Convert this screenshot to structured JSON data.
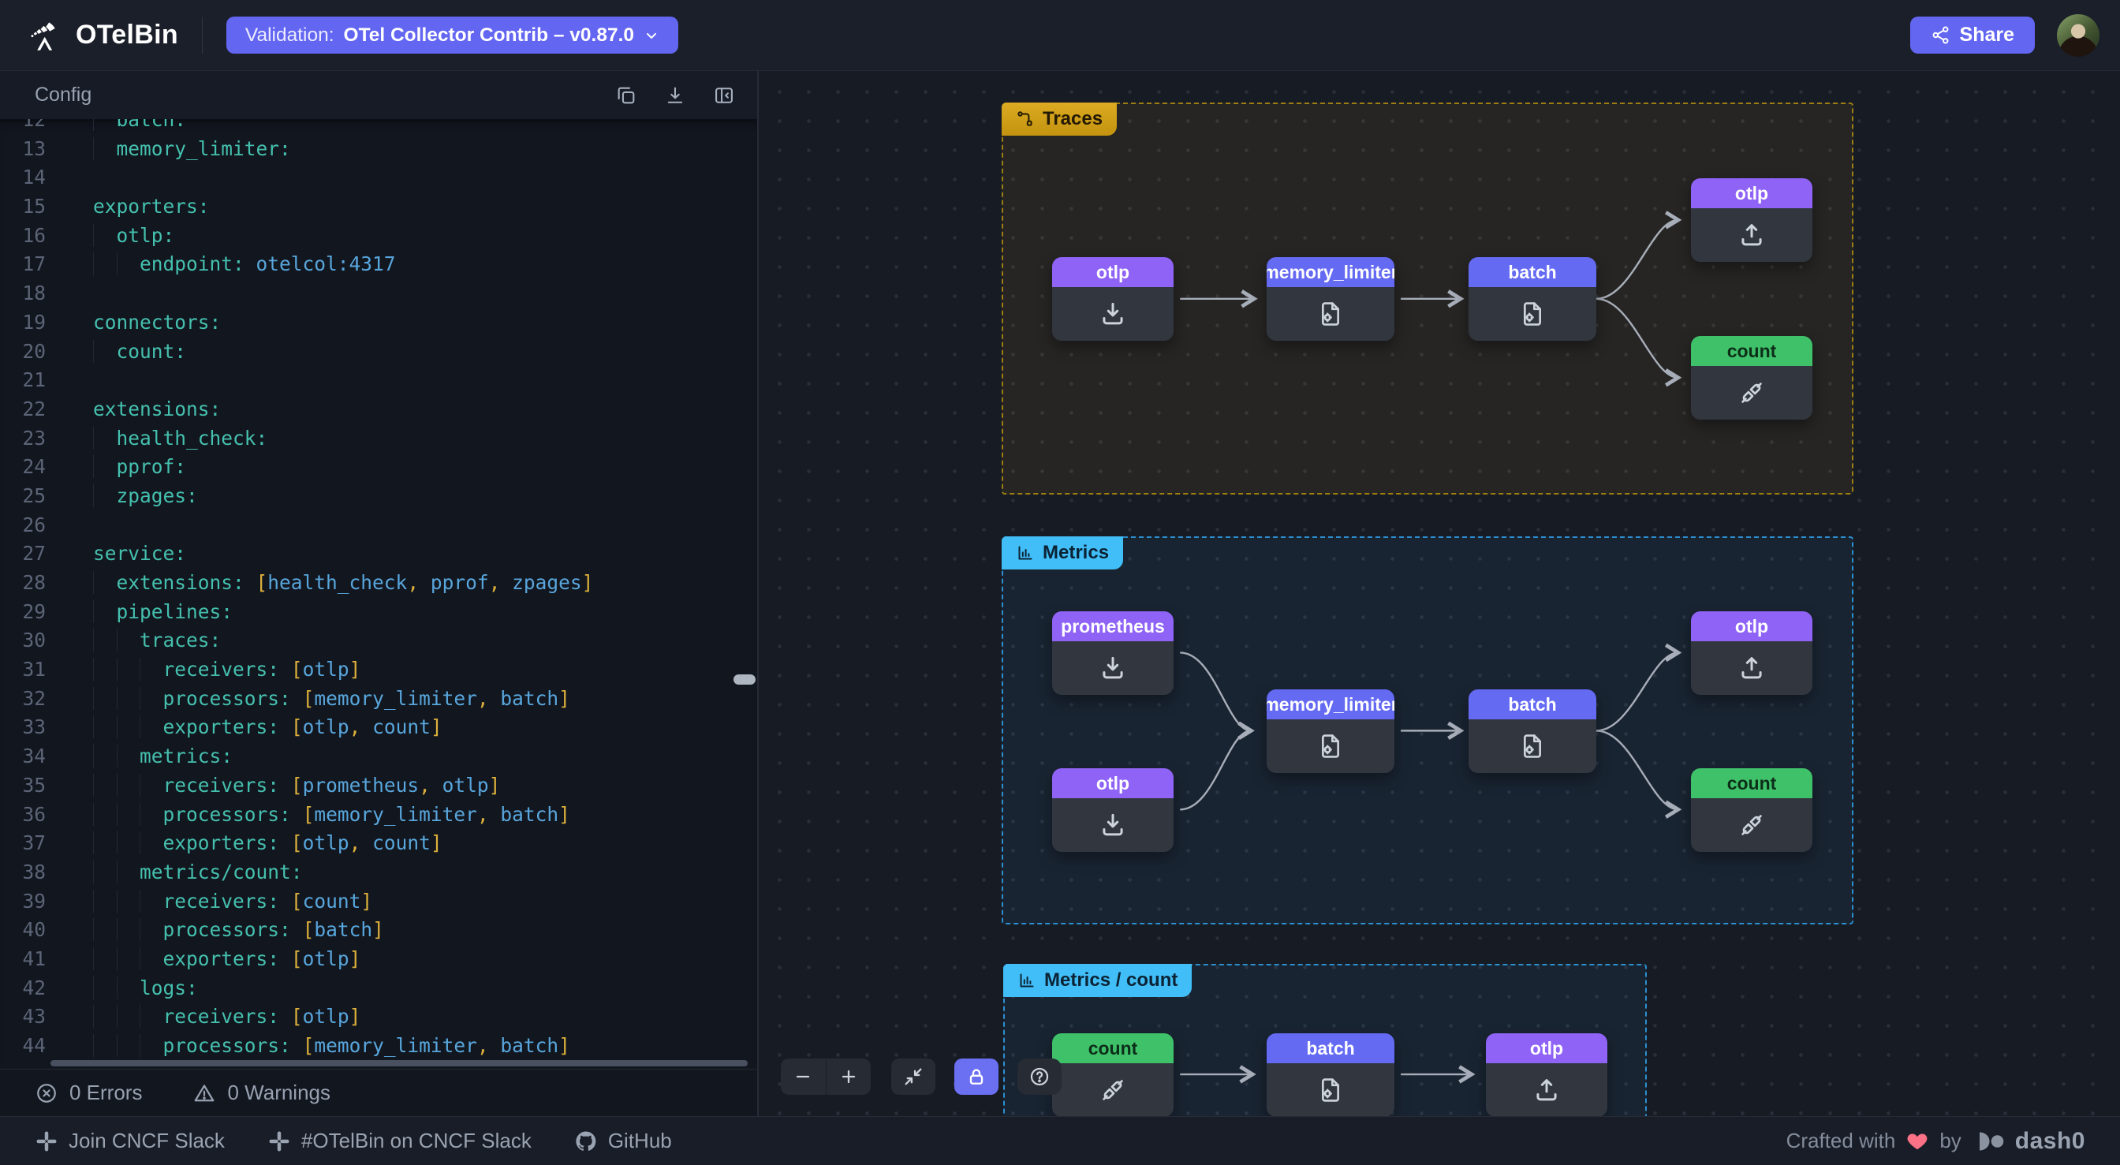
{
  "colors": {
    "accent_indigo": "#6366f1",
    "receiver_purple": "#8e63f6",
    "processor_indigo": "#646af2",
    "connector_green": "#3fc169",
    "traces_amber": "#d9a824",
    "metrics_cyan": "#41bdf7",
    "edge_gray": "#a8aeb9",
    "code_key_teal": "#45c0ae",
    "code_value_blue": "#58a6dc",
    "code_punct_yellow": "#ddb13b",
    "heart_red": "#fb7185"
  },
  "header": {
    "app_name": "OTelBin",
    "validation_label": "Validation:",
    "validation_value": "OTel Collector Contrib – v0.87.0",
    "share_label": "Share",
    "icons": [
      "otelbin-logo",
      "chevron-down-icon",
      "share-icon",
      "user-avatar"
    ]
  },
  "config_panel": {
    "title": "Config",
    "toolbar_icons": [
      "copy-icon",
      "download-icon",
      "collapse-panel-icon"
    ],
    "status": {
      "errors": "0 Errors",
      "warnings": "0 Warnings"
    },
    "status_icons": [
      "circle-x-icon",
      "warning-triangle-icon"
    ],
    "lines": [
      {
        "n": "12",
        "t": [
          [
            "i",
            "  "
          ],
          [
            "k",
            "batch:"
          ]
        ]
      },
      {
        "n": "13",
        "t": [
          [
            "i",
            "  "
          ],
          [
            "k",
            "memory_limiter:"
          ]
        ]
      },
      {
        "n": "14",
        "t": []
      },
      {
        "n": "15",
        "t": [
          [
            "k",
            "exporters:"
          ]
        ]
      },
      {
        "n": "16",
        "t": [
          [
            "i",
            "  "
          ],
          [
            "k",
            "otlp:"
          ]
        ]
      },
      {
        "n": "17",
        "t": [
          [
            "i",
            "    "
          ],
          [
            "k",
            "endpoint:"
          ],
          [
            "v",
            " otelcol:4317"
          ]
        ]
      },
      {
        "n": "18",
        "t": []
      },
      {
        "n": "19",
        "t": [
          [
            "k",
            "connectors:"
          ]
        ]
      },
      {
        "n": "20",
        "t": [
          [
            "i",
            "  "
          ],
          [
            "k",
            "count:"
          ]
        ]
      },
      {
        "n": "21",
        "t": []
      },
      {
        "n": "22",
        "t": [
          [
            "k",
            "extensions:"
          ]
        ]
      },
      {
        "n": "23",
        "t": [
          [
            "i",
            "  "
          ],
          [
            "k",
            "health_check:"
          ]
        ]
      },
      {
        "n": "24",
        "t": [
          [
            "i",
            "  "
          ],
          [
            "k",
            "pprof:"
          ]
        ]
      },
      {
        "n": "25",
        "t": [
          [
            "i",
            "  "
          ],
          [
            "k",
            "zpages:"
          ]
        ]
      },
      {
        "n": "26",
        "t": []
      },
      {
        "n": "27",
        "t": [
          [
            "k",
            "service:"
          ]
        ]
      },
      {
        "n": "28",
        "t": [
          [
            "i",
            "  "
          ],
          [
            "k",
            "extensions:"
          ],
          [
            "p",
            " ["
          ],
          [
            "v",
            "health_check"
          ],
          [
            "p",
            ", "
          ],
          [
            "v",
            "pprof"
          ],
          [
            "p",
            ", "
          ],
          [
            "v",
            "zpages"
          ],
          [
            "p",
            "]"
          ]
        ]
      },
      {
        "n": "29",
        "t": [
          [
            "i",
            "  "
          ],
          [
            "k",
            "pipelines:"
          ]
        ]
      },
      {
        "n": "30",
        "t": [
          [
            "i",
            "    "
          ],
          [
            "k",
            "traces:"
          ]
        ]
      },
      {
        "n": "31",
        "t": [
          [
            "i",
            "      "
          ],
          [
            "k",
            "receivers:"
          ],
          [
            "p",
            " ["
          ],
          [
            "v",
            "otlp"
          ],
          [
            "p",
            "]"
          ]
        ]
      },
      {
        "n": "32",
        "t": [
          [
            "i",
            "      "
          ],
          [
            "k",
            "processors:"
          ],
          [
            "p",
            " ["
          ],
          [
            "v",
            "memory_limiter"
          ],
          [
            "p",
            ", "
          ],
          [
            "v",
            "batch"
          ],
          [
            "p",
            "]"
          ]
        ]
      },
      {
        "n": "33",
        "t": [
          [
            "i",
            "      "
          ],
          [
            "k",
            "exporters:"
          ],
          [
            "p",
            " ["
          ],
          [
            "v",
            "otlp"
          ],
          [
            "p",
            ", "
          ],
          [
            "v",
            "count"
          ],
          [
            "p",
            "]"
          ]
        ]
      },
      {
        "n": "34",
        "t": [
          [
            "i",
            "    "
          ],
          [
            "k",
            "metrics:"
          ]
        ]
      },
      {
        "n": "35",
        "t": [
          [
            "i",
            "      "
          ],
          [
            "k",
            "receivers:"
          ],
          [
            "p",
            " ["
          ],
          [
            "v",
            "prometheus"
          ],
          [
            "p",
            ", "
          ],
          [
            "v",
            "otlp"
          ],
          [
            "p",
            "]"
          ]
        ]
      },
      {
        "n": "36",
        "t": [
          [
            "i",
            "      "
          ],
          [
            "k",
            "processors:"
          ],
          [
            "p",
            " ["
          ],
          [
            "v",
            "memory_limiter"
          ],
          [
            "p",
            ", "
          ],
          [
            "v",
            "batch"
          ],
          [
            "p",
            "]"
          ]
        ]
      },
      {
        "n": "37",
        "t": [
          [
            "i",
            "      "
          ],
          [
            "k",
            "exporters:"
          ],
          [
            "p",
            " ["
          ],
          [
            "v",
            "otlp"
          ],
          [
            "p",
            ", "
          ],
          [
            "v",
            "count"
          ],
          [
            "p",
            "]"
          ]
        ]
      },
      {
        "n": "38",
        "t": [
          [
            "i",
            "    "
          ],
          [
            "k",
            "metrics/count:"
          ]
        ]
      },
      {
        "n": "39",
        "t": [
          [
            "i",
            "      "
          ],
          [
            "k",
            "receivers:"
          ],
          [
            "p",
            " ["
          ],
          [
            "v",
            "count"
          ],
          [
            "p",
            "]"
          ]
        ]
      },
      {
        "n": "40",
        "t": [
          [
            "i",
            "      "
          ],
          [
            "k",
            "processors:"
          ],
          [
            "p",
            " ["
          ],
          [
            "v",
            "batch"
          ],
          [
            "p",
            "]"
          ]
        ]
      },
      {
        "n": "41",
        "t": [
          [
            "i",
            "      "
          ],
          [
            "k",
            "exporters:"
          ],
          [
            "p",
            " ["
          ],
          [
            "v",
            "otlp"
          ],
          [
            "p",
            "]"
          ]
        ]
      },
      {
        "n": "42",
        "t": [
          [
            "i",
            "    "
          ],
          [
            "k",
            "logs:"
          ]
        ]
      },
      {
        "n": "43",
        "t": [
          [
            "i",
            "      "
          ],
          [
            "k",
            "receivers:"
          ],
          [
            "p",
            " ["
          ],
          [
            "v",
            "otlp"
          ],
          [
            "p",
            "]"
          ]
        ]
      },
      {
        "n": "44",
        "t": [
          [
            "i",
            "      "
          ],
          [
            "k",
            "processors:"
          ],
          [
            "p",
            " ["
          ],
          [
            "v",
            "memory_limiter"
          ],
          [
            "p",
            ", "
          ],
          [
            "v",
            "batch"
          ],
          [
            "p",
            "]"
          ]
        ]
      }
    ]
  },
  "canvas": {
    "groups": {
      "traces": {
        "label": "Traces",
        "icon": "route-icon",
        "nodes": [
          {
            "label": "otlp",
            "kind": "receiver",
            "icon": "download-tray-icon"
          },
          {
            "label": "memory_limiter",
            "kind": "processor",
            "icon": "file-gear-icon"
          },
          {
            "label": "batch",
            "kind": "processor",
            "icon": "file-gear-icon"
          },
          {
            "label": "otlp",
            "kind": "exporter",
            "icon": "upload-tray-icon"
          },
          {
            "label": "count",
            "kind": "connector",
            "icon": "plug-icon"
          }
        ]
      },
      "metrics": {
        "label": "Metrics",
        "icon": "bar-chart-icon",
        "nodes": [
          {
            "label": "prometheus",
            "kind": "receiver",
            "icon": "download-tray-icon"
          },
          {
            "label": "otlp",
            "kind": "receiver",
            "icon": "download-tray-icon"
          },
          {
            "label": "memory_limiter",
            "kind": "processor",
            "icon": "file-gear-icon"
          },
          {
            "label": "batch",
            "kind": "processor",
            "icon": "file-gear-icon"
          },
          {
            "label": "otlp",
            "kind": "exporter",
            "icon": "upload-tray-icon"
          },
          {
            "label": "count",
            "kind": "connector",
            "icon": "plug-icon"
          }
        ]
      },
      "metrics_count": {
        "label": "Metrics / count",
        "icon": "bar-chart-icon",
        "nodes": [
          {
            "label": "count",
            "kind": "connector",
            "icon": "plug-icon"
          },
          {
            "label": "batch",
            "kind": "processor",
            "icon": "file-gear-icon"
          },
          {
            "label": "otlp",
            "kind": "exporter",
            "icon": "upload-tray-icon"
          }
        ]
      }
    },
    "edges": [
      {
        "group": "traces",
        "from": "otlp",
        "to": "memory_limiter"
      },
      {
        "group": "traces",
        "from": "memory_limiter",
        "to": "batch"
      },
      {
        "group": "traces",
        "from": "batch",
        "to": "otlp"
      },
      {
        "group": "traces",
        "from": "batch",
        "to": "count"
      },
      {
        "group": "metrics",
        "from": "prometheus",
        "to": "memory_limiter"
      },
      {
        "group": "metrics",
        "from": "otlp",
        "to": "memory_limiter"
      },
      {
        "group": "metrics",
        "from": "memory_limiter",
        "to": "batch"
      },
      {
        "group": "metrics",
        "from": "batch",
        "to": "otlp"
      },
      {
        "group": "metrics",
        "from": "batch",
        "to": "count"
      },
      {
        "group": "metrics_count",
        "from": "count",
        "to": "batch"
      },
      {
        "group": "metrics_count",
        "from": "batch",
        "to": "otlp"
      }
    ],
    "toolbar_icons": [
      "zoom-out-icon",
      "zoom-in-icon",
      "fit-view-icon",
      "lock-icon",
      "help-icon"
    ]
  },
  "footer": {
    "links": [
      {
        "label": "Join CNCF Slack",
        "icon": "slack-icon"
      },
      {
        "label": "#OTelBin on CNCF Slack",
        "icon": "slack-icon"
      },
      {
        "label": "GitHub",
        "icon": "github-icon"
      }
    ],
    "credit": {
      "prefix": "Crafted with",
      "heart": "❤",
      "middle": "by",
      "brand": "dash0"
    }
  }
}
